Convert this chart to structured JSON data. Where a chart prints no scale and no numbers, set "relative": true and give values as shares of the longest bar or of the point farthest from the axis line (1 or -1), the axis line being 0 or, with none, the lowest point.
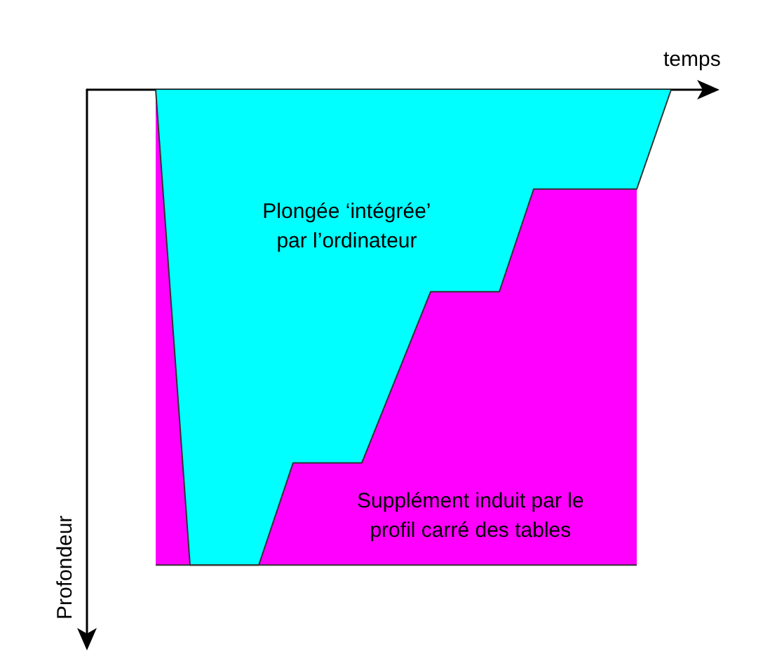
{
  "chart_data": {
    "type": "area",
    "relative": true,
    "xlabel": "temps",
    "ylabel": "Profondeur",
    "categories": [
      null,
      null,
      null,
      null,
      null,
      null,
      null,
      null,
      null,
      null,
      null,
      null,
      null,
      null,
      null,
      null,
      null,
      null,
      null
    ],
    "series": [
      {
        "color": "#ff00ff",
        "values": [
          null,
          null,
          -1,
          -1,
          -1,
          -1,
          -1,
          -1,
          -1,
          -1,
          -1,
          -1,
          -1,
          -1,
          -1,
          -1,
          -1,
          null,
          null
        ]
      },
      {
        "color": "#00ffff",
        "values": [
          null,
          null,
          0,
          -1,
          -1,
          -1,
          -0.785,
          -0.785,
          -0.785,
          -0.605,
          -0.425,
          -0.425,
          -0.425,
          -0.209,
          -0.209,
          -0.209,
          -0.209,
          0,
          null
        ]
      }
    ],
    "annotations": [
      "Plongée ‘intégrée’\npar l’ordinateur",
      "Supplément induit par le\nprofil carré des tables"
    ]
  }
}
